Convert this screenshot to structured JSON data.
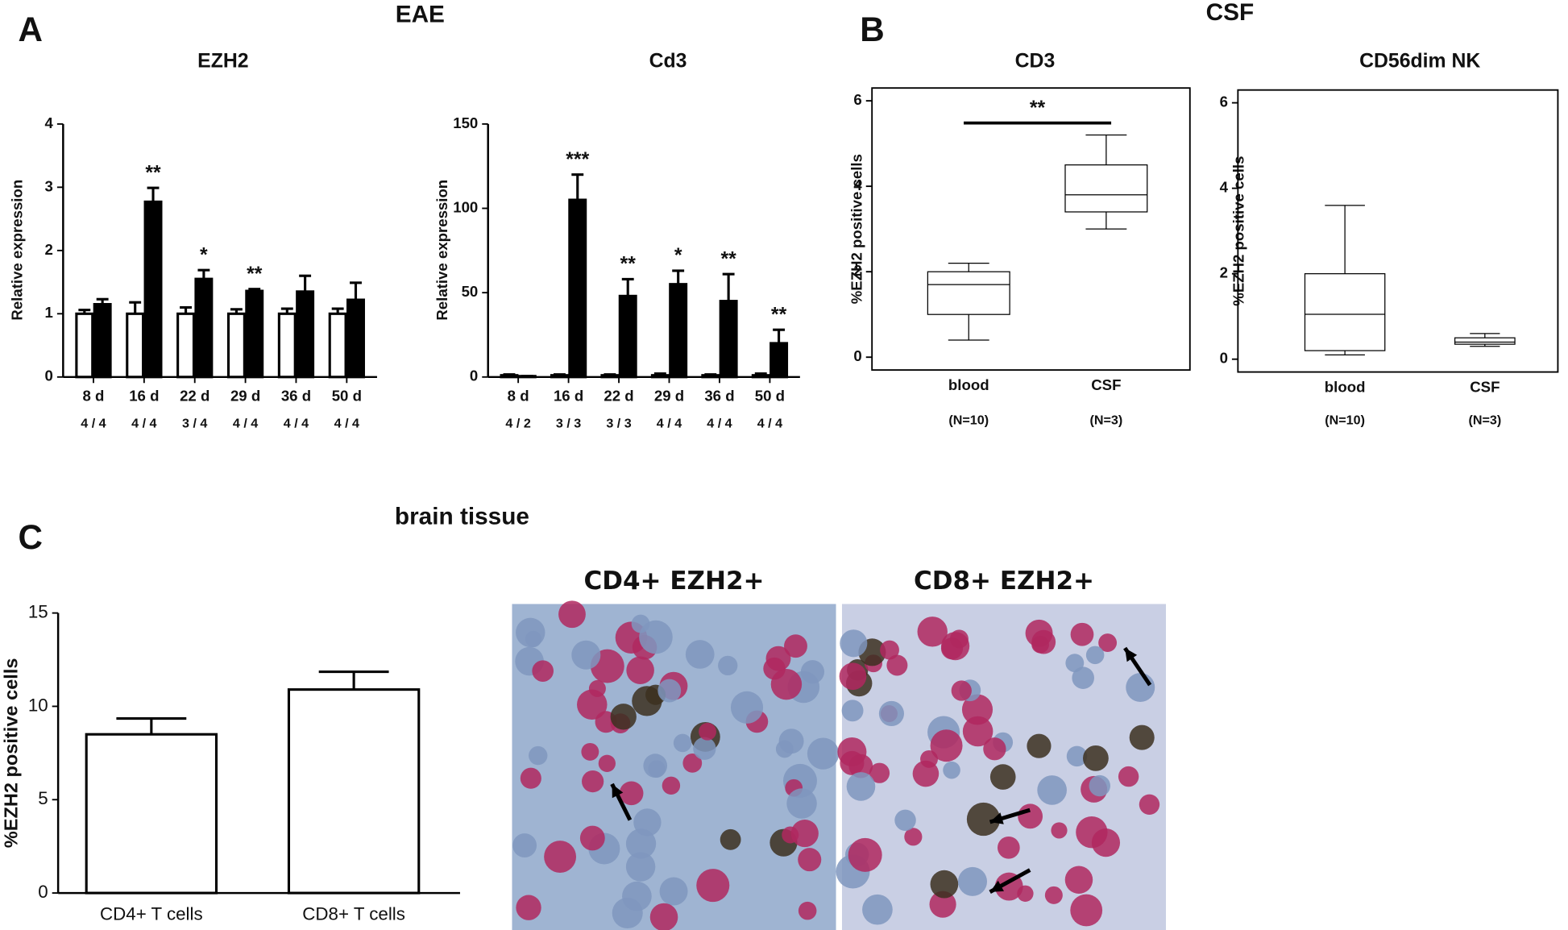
{
  "panels": {
    "A": {
      "label": "A",
      "title": "EAE"
    },
    "B": {
      "label": "B",
      "title": "CSF"
    },
    "C": {
      "label": "C",
      "title": "brain tissue"
    }
  },
  "chart_data": [
    {
      "type": "bar",
      "title": "EZH2",
      "y_label": "Relative expression",
      "categories": [
        "8 d",
        "16 d",
        "22 d",
        "29 d",
        "36 d",
        "50 d"
      ],
      "n_labels": [
        "4 / 4",
        "4 / 4",
        "3 / 4",
        "4 / 4",
        "4 / 4",
        "4 / 4"
      ],
      "series": [
        {
          "color": "#ffffff",
          "values": [
            1,
            1,
            1,
            1,
            1,
            1
          ],
          "errors": [
            0.06,
            0.18,
            0.1,
            0.07,
            0.08,
            0.08
          ]
        },
        {
          "color": "#000000",
          "values": [
            1.15,
            2.77,
            1.55,
            1.36,
            1.35,
            1.22
          ],
          "errors": [
            0.08,
            0.22,
            0.14,
            0.03,
            0.25,
            0.27
          ]
        }
      ],
      "significance": [
        null,
        "**",
        "*",
        "**",
        null,
        null
      ],
      "ylim": [
        0,
        4
      ],
      "yticks": [
        0,
        1,
        2,
        3,
        4
      ]
    },
    {
      "type": "bar",
      "title": "Cd3",
      "y_label": "Relative expression",
      "categories": [
        "8 d",
        "16 d",
        "22 d",
        "29 d",
        "36 d",
        "50 d"
      ],
      "n_labels": [
        "4 / 2",
        "3 / 3",
        "3 / 3",
        "4 / 4",
        "4 / 4",
        "4 / 4"
      ],
      "series": [
        {
          "color": "#ffffff",
          "values": [
            1,
            1,
            1,
            1,
            1,
            1
          ],
          "errors": [
            0.5,
            0.5,
            0.5,
            1,
            0.5,
            1
          ]
        },
        {
          "color": "#000000",
          "values": [
            0.5,
            105,
            48,
            55,
            45,
            20
          ],
          "errors": [
            0,
            15,
            10,
            8,
            16,
            8
          ]
        }
      ],
      "significance": [
        null,
        "***",
        "**",
        "*",
        "**",
        "**"
      ],
      "ylim": [
        0,
        150
      ],
      "yticks": [
        0,
        50,
        100,
        150
      ]
    },
    {
      "type": "box",
      "title": "CD3",
      "y_label": "%EZH2 positive cells",
      "categories": [
        "blood",
        "CSF"
      ],
      "n_labels": [
        "(N=10)",
        "(N=3)"
      ],
      "min": [
        0.4,
        3
      ],
      "q1": [
        1,
        3.4
      ],
      "median": [
        1.7,
        3.8
      ],
      "q3": [
        2,
        4.5
      ],
      "max": [
        2.2,
        5.2
      ],
      "bracket": "**",
      "ylim": [
        -0.3,
        6.3
      ],
      "yticks": [
        0,
        2,
        4,
        6
      ]
    },
    {
      "type": "box",
      "title": "CD56dim NK",
      "y_label": "%EZH2 positive cells",
      "categories": [
        "blood",
        "CSF"
      ],
      "n_labels": [
        "(N=10)",
        "(N=3)"
      ],
      "min": [
        0.1,
        0.3
      ],
      "q1": [
        0.2,
        0.35
      ],
      "median": [
        1.05,
        0.4
      ],
      "q3": [
        2,
        0.5
      ],
      "max": [
        3.6,
        0.6
      ],
      "ylim": [
        -0.3,
        6.3
      ],
      "yticks": [
        0,
        2,
        4,
        6
      ]
    },
    {
      "type": "bar",
      "y_label": "%EZH2 positive cells",
      "categories": [
        "CD4+ T cells",
        "CD8+ T cells"
      ],
      "series": [
        {
          "color": "#ffffff",
          "values": [
            8.5,
            10.9
          ],
          "errors": [
            0.85,
            0.95
          ]
        }
      ],
      "ylim": [
        0,
        15
      ],
      "yticks": [
        0,
        5,
        10,
        15
      ]
    }
  ],
  "images": [
    {
      "title": "CD4+ EZH2+"
    },
    {
      "title": "CD8+ EZH2+"
    }
  ]
}
